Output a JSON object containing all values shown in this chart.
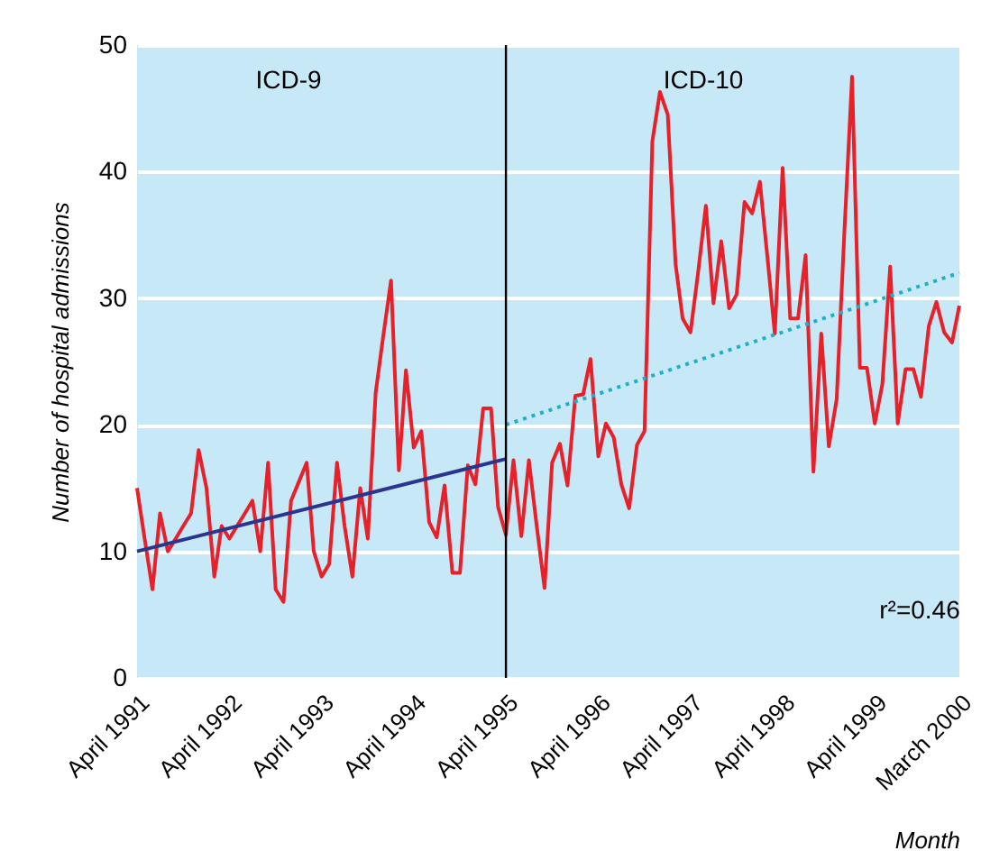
{
  "chart_data": {
    "type": "line",
    "xlabel": "Month",
    "ylabel": "Number of hospital admissions",
    "x": [
      "1991-04",
      "1991-05",
      "1991-06",
      "1991-07",
      "1991-08",
      "1991-09",
      "1991-10",
      "1991-11",
      "1991-12",
      "1992-01",
      "1992-02",
      "1992-03",
      "1992-04",
      "1992-05",
      "1992-06",
      "1992-07",
      "1992-08",
      "1992-09",
      "1992-10",
      "1992-11",
      "1992-12",
      "1993-01",
      "1993-02",
      "1993-03",
      "1993-04",
      "1993-05",
      "1993-06",
      "1993-07",
      "1993-08",
      "1993-09",
      "1993-10",
      "1993-11",
      "1993-12",
      "1994-01",
      "1994-02",
      "1994-03",
      "1994-04",
      "1994-05",
      "1994-06",
      "1994-07",
      "1994-08",
      "1994-09",
      "1994-10",
      "1994-11",
      "1994-12",
      "1995-01",
      "1995-02",
      "1995-03",
      "1995-04",
      "1995-05",
      "1995-06",
      "1995-07",
      "1995-08",
      "1995-09",
      "1995-10",
      "1995-11",
      "1995-12",
      "1996-01",
      "1996-02",
      "1996-03",
      "1996-04",
      "1996-05",
      "1996-06",
      "1996-07",
      "1996-08",
      "1996-09",
      "1996-10",
      "1996-11",
      "1996-12",
      "1997-01",
      "1997-02",
      "1997-03",
      "1997-04",
      "1997-05",
      "1997-06",
      "1997-07",
      "1997-08",
      "1997-09",
      "1997-10",
      "1997-11",
      "1997-12",
      "1998-01",
      "1998-02",
      "1998-03",
      "1998-04",
      "1998-05",
      "1998-06",
      "1998-07",
      "1998-08",
      "1998-09",
      "1998-10",
      "1998-11",
      "1998-12",
      "1999-01",
      "1999-02",
      "1999-03",
      "1999-04",
      "1999-05",
      "1999-06",
      "1999-07",
      "1999-08",
      "1999-09",
      "1999-10",
      "1999-11",
      "1999-12",
      "2000-01",
      "2000-02",
      "2000-03"
    ],
    "series": [
      {
        "color": "#e8202a",
        "values": [
          15,
          11,
          7,
          13,
          10,
          11,
          12,
          13,
          18,
          15,
          8,
          12,
          11,
          12,
          13,
          14,
          10,
          17,
          7,
          6,
          14,
          15.5,
          17,
          10,
          8,
          9,
          17,
          12,
          8,
          15,
          11,
          22.5,
          27,
          31.4,
          16.4,
          24.3,
          18.2,
          19.5,
          12.3,
          11.1,
          15.2,
          8.3,
          8.3,
          16.8,
          15.3,
          21.3,
          21.3,
          13.5,
          11.3,
          17.2,
          11.2,
          17.2,
          12,
          7.1,
          17,
          18.5,
          15.2,
          22.3,
          22.4,
          25.2,
          17.5,
          20.1,
          19,
          15.3,
          13.4,
          18.4,
          19.5,
          42.4,
          46.3,
          44.5,
          32.7,
          28.4,
          27.3,
          32,
          37.3,
          29.6,
          34.5,
          29.2,
          30.3,
          37.6,
          36.7,
          39.2,
          33,
          27.2,
          40.3,
          28.4,
          28.4,
          33.4,
          16.3,
          27.2,
          18.3,
          22,
          35,
          47.5,
          24.5,
          24.5,
          20.1,
          23.2,
          32.5,
          20.1,
          24.4,
          24.4,
          22.2,
          27.8,
          29.7,
          27.3,
          26.5,
          29.4
        ]
      },
      {
        "type": "line",
        "color": "#2b3590",
        "line_style": "solid",
        "x": [
          "1991-04",
          "1995-04"
        ],
        "values": [
          10,
          17.3
        ]
      },
      {
        "type": "line",
        "color": "#1fb0c8",
        "line_style": "dotted",
        "x": [
          "1995-04",
          "2000-03"
        ],
        "values": [
          20,
          32
        ]
      }
    ],
    "ref_lines": [
      {
        "axis": "x",
        "value": "1995-04",
        "color": "#000000"
      }
    ],
    "annotations": [
      "ICD-9",
      "ICD-10",
      "r²=0.46"
    ],
    "xlim": [
      "1991-04",
      "2000-03"
    ],
    "ylim": [
      0,
      50
    ],
    "yticks": [
      0,
      10,
      20,
      30,
      40,
      50
    ],
    "xticks": [
      {
        "value": "1991-04",
        "label": "April 1991"
      },
      {
        "value": "1992-04",
        "label": "April 1992"
      },
      {
        "value": "1993-04",
        "label": "April 1993"
      },
      {
        "value": "1994-04",
        "label": "April 1994"
      },
      {
        "value": "1995-04",
        "label": "April 1995"
      },
      {
        "value": "1996-04",
        "label": "April 1996"
      },
      {
        "value": "1997-04",
        "label": "April 1997"
      },
      {
        "value": "1998-04",
        "label": "April 1998"
      },
      {
        "value": "1999-04",
        "label": "April 1999"
      },
      {
        "value": "2000-03",
        "label": "March 2000"
      }
    ],
    "grid": "y"
  }
}
